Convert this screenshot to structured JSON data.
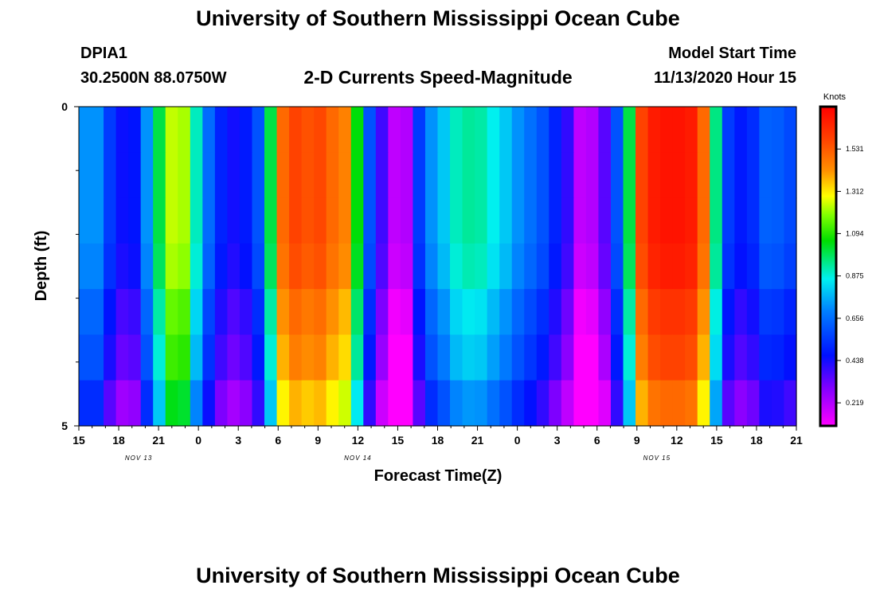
{
  "titles": {
    "top": "University of Southern Mississippi Ocean Cube",
    "bottom": "University of Southern Mississippi Ocean Cube"
  },
  "header": {
    "station": "DPIA1",
    "coords": "30.2500N 88.0750W",
    "product": "2-D Currents Speed-Magnitude",
    "model_start_label": "Model Start Time",
    "model_start_value": "11/13/2020 Hour 15"
  },
  "chart_data": {
    "type": "heatmap",
    "title": "2-D Currents Speed-Magnitude",
    "xlabel": "Forecast Time(Z)",
    "ylabel": "Depth (ft)",
    "units": "Knots",
    "x_tick_labels": [
      "15",
      "18",
      "21",
      "0",
      "3",
      "6",
      "9",
      "12",
      "15",
      "18",
      "21",
      "0",
      "3",
      "6",
      "9",
      "12",
      "15",
      "18",
      "21"
    ],
    "day_labels": [
      {
        "text": "NOV 13",
        "tick_index": 1.5
      },
      {
        "text": "NOV 14",
        "tick_index": 7.0
      },
      {
        "text": "NOV 15",
        "tick_index": 14.5
      }
    ],
    "y_tick_labels": [
      "0",
      "5"
    ],
    "ylim": [
      5,
      0
    ],
    "time_range_hours": [
      0,
      54
    ],
    "depth_levels": 5,
    "colorbar": {
      "label": "Knots",
      "ticks": [
        "1.531",
        "1.312",
        "1.094",
        "0.875",
        "0.656",
        "0.438",
        "0.219"
      ],
      "range": [
        0.1,
        1.75
      ]
    },
    "row_offsets": [
      0.0,
      0.0,
      0.0,
      -0.02,
      -0.08,
      -0.12,
      -0.2
    ],
    "speed_profile_knots": [
      0.72,
      0.72,
      0.55,
      0.45,
      0.47,
      0.72,
      1.0,
      1.24,
      1.22,
      0.9,
      0.65,
      0.5,
      0.44,
      0.48,
      0.6,
      1.0,
      1.5,
      1.58,
      1.55,
      1.57,
      1.5,
      1.45,
      1.05,
      0.6,
      0.38,
      0.2,
      0.22,
      0.55,
      0.72,
      0.8,
      0.9,
      0.93,
      0.92,
      0.86,
      0.8,
      0.72,
      0.66,
      0.6,
      0.5,
      0.4,
      0.2,
      0.22,
      0.35,
      0.6,
      1.0,
      1.58,
      1.68,
      1.7,
      1.7,
      1.68,
      1.5,
      0.95,
      0.55,
      0.48,
      0.52,
      0.63,
      0.62,
      0.58
    ]
  }
}
